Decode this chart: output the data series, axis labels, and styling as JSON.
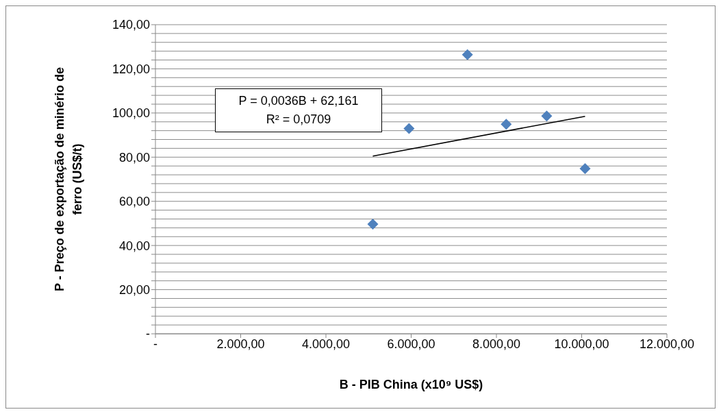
{
  "chart_data": {
    "type": "scatter",
    "xlabel": "B - PIB China (x10⁹ US$)",
    "ylabel": "P - Preço de exportação de minério de ferro (US$/t)",
    "xlim": [
      0,
      12000
    ],
    "xticks": [
      {
        "value": 0,
        "label": "-"
      },
      {
        "value": 2000,
        "label": "2.000,00"
      },
      {
        "value": 4000,
        "label": "4.000,00"
      },
      {
        "value": 6000,
        "label": "6.000,00"
      },
      {
        "value": 8000,
        "label": "8.000,00"
      },
      {
        "value": 10000,
        "label": "10.000,00"
      },
      {
        "value": 12000,
        "label": "12.000,00"
      }
    ],
    "ylim": [
      0,
      140
    ],
    "yticks": [
      {
        "value": 0,
        "label": "-"
      },
      {
        "value": 4,
        "label": null
      },
      {
        "value": 8,
        "label": null
      },
      {
        "value": 12,
        "label": null
      },
      {
        "value": 16,
        "label": null
      },
      {
        "value": 20,
        "label": "20,00"
      },
      {
        "value": 24,
        "label": null
      },
      {
        "value": 28,
        "label": null
      },
      {
        "value": 32,
        "label": null
      },
      {
        "value": 36,
        "label": null
      },
      {
        "value": 40,
        "label": "40,00"
      },
      {
        "value": 44,
        "label": null
      },
      {
        "value": 48,
        "label": null
      },
      {
        "value": 52,
        "label": null
      },
      {
        "value": 56,
        "label": null
      },
      {
        "value": 60,
        "label": "60,00"
      },
      {
        "value": 64,
        "label": null
      },
      {
        "value": 68,
        "label": null
      },
      {
        "value": 72,
        "label": null
      },
      {
        "value": 76,
        "label": null
      },
      {
        "value": 80,
        "label": "80,00"
      },
      {
        "value": 84,
        "label": null
      },
      {
        "value": 88,
        "label": null
      },
      {
        "value": 92,
        "label": null
      },
      {
        "value": 96,
        "label": null
      },
      {
        "value": 100,
        "label": "100,00"
      },
      {
        "value": 104,
        "label": null
      },
      {
        "value": 108,
        "label": null
      },
      {
        "value": 112,
        "label": null
      },
      {
        "value": 116,
        "label": null
      },
      {
        "value": 120,
        "label": "120,00"
      },
      {
        "value": 124,
        "label": null
      },
      {
        "value": 128,
        "label": null
      },
      {
        "value": 132,
        "label": null
      },
      {
        "value": 136,
        "label": null
      },
      {
        "value": 140,
        "label": "140,00"
      }
    ],
    "grid": "y",
    "series": [
      {
        "color": "#4f81bd",
        "marker": "diamond",
        "x": [
          5100,
          5950,
          7320,
          8230,
          9180,
          10080
        ],
        "values": [
          49.7,
          93.0,
          126.4,
          94.9,
          98.6,
          74.8
        ]
      },
      {
        "type": "line",
        "color": "#000000",
        "marker": "none",
        "x": [
          5100,
          10080
        ],
        "values": [
          80.5,
          98.5
        ]
      }
    ],
    "annotations": [
      "P = 0,0036B + 62,161\nR² = 0,0709"
    ]
  }
}
